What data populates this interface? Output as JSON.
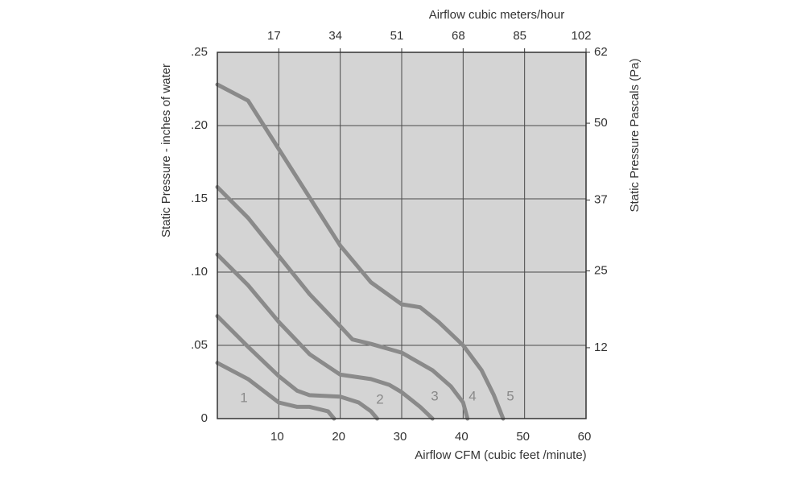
{
  "chart_data": {
    "type": "line",
    "top_axis_label": "Airflow cubic meters/hour",
    "x_label": "Airflow  CFM (cubic feet /minute)",
    "y_label": "Static Pressure - inches of water",
    "y2_label": "Static Pressure Pascals (Pa)",
    "xlim": [
      0,
      60
    ],
    "xticks": [
      10,
      20,
      30,
      40,
      50,
      60
    ],
    "x2lim": [
      0,
      102
    ],
    "x2ticks": [
      17,
      34,
      51,
      68,
      85,
      102
    ],
    "ylim": [
      0,
      0.25
    ],
    "yticks": [
      0,
      {
        "value": 0.05,
        "label": ".05"
      },
      {
        "value": 0.1,
        "label": ".10"
      },
      {
        "value": 0.15,
        "label": ".15"
      },
      {
        "value": 0.2,
        "label": ".20"
      },
      {
        "value": 0.25,
        "label": ".25"
      }
    ],
    "y2lim": [
      0,
      62
    ],
    "y2ticks": [
      12,
      25,
      37,
      50,
      62
    ],
    "grid": true,
    "series": [
      {
        "name": "1",
        "color": "#8a8a8a",
        "x": [
          0,
          5,
          10,
          13,
          15,
          18,
          19
        ],
        "values": [
          0.038,
          0.027,
          0.011,
          0.008,
          0.008,
          0.005,
          0
        ]
      },
      {
        "name": "2",
        "color": "#8a8a8a",
        "x": [
          0,
          5,
          10,
          13,
          15,
          20,
          23,
          25,
          26
        ],
        "values": [
          0.07,
          0.049,
          0.029,
          0.019,
          0.016,
          0.015,
          0.011,
          0.005,
          0
        ]
      },
      {
        "name": "3",
        "color": "#8a8a8a",
        "x": [
          0,
          5,
          10,
          15,
          20,
          25,
          28,
          30,
          33,
          35
        ],
        "values": [
          0.112,
          0.091,
          0.066,
          0.044,
          0.03,
          0.027,
          0.023,
          0.018,
          0.008,
          0
        ]
      },
      {
        "name": "4",
        "color": "#8a8a8a",
        "x": [
          0,
          5,
          10,
          15,
          20,
          22,
          25,
          30,
          35,
          38,
          40,
          40.7
        ],
        "values": [
          0.158,
          0.137,
          0.111,
          0.085,
          0.063,
          0.054,
          0.051,
          0.045,
          0.033,
          0.022,
          0.011,
          0
        ]
      },
      {
        "name": "5",
        "color": "#8a8a8a",
        "x": [
          0,
          5,
          10,
          15,
          20,
          25,
          30,
          33,
          36,
          40,
          43,
          45,
          46.5
        ],
        "values": [
          0.228,
          0.217,
          0.184,
          0.151,
          0.118,
          0.093,
          0.078,
          0.076,
          0.066,
          0.05,
          0.033,
          0.016,
          0
        ]
      }
    ]
  }
}
